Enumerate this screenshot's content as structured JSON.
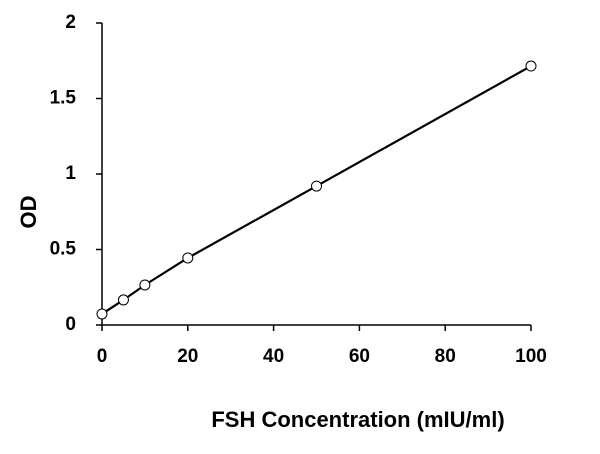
{
  "chart_data": {
    "type": "line",
    "x_label": "FSH Concentration (mIU/ml)",
    "y_label": "OD",
    "x": [
      0,
      5,
      10,
      20,
      50,
      100
    ],
    "values": [
      0.073,
      0.166,
      0.265,
      0.444,
      0.92,
      1.715
    ],
    "color": "#000000",
    "marker_fill": "#ffffff",
    "xlim": [
      0,
      100
    ],
    "xticks": [
      0,
      20,
      40,
      60,
      80,
      100
    ],
    "ylim": [
      0,
      2
    ],
    "yticks": [
      0,
      0.5,
      1,
      1.5,
      2
    ],
    "grid": false
  }
}
